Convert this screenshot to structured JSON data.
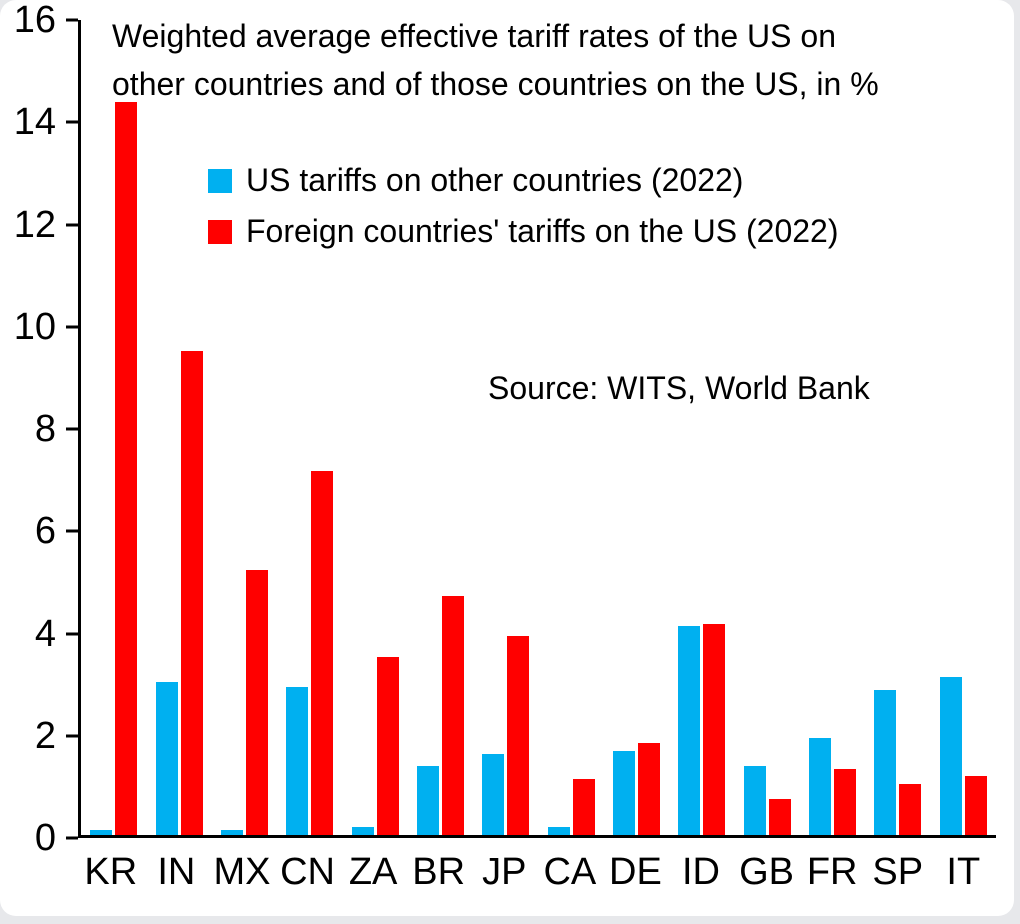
{
  "chart_data": {
    "type": "bar",
    "title": "Weighted average effective tariff rates of the US on other countries and of those countries on the US, in %",
    "title_lines": [
      "Weighted average effective tariff rates of the US on",
      "other countries and of those countries on the US, in %"
    ],
    "categories": [
      "KR",
      "IN",
      "MX",
      "CN",
      "ZA",
      "BR",
      "JP",
      "CA",
      "DE",
      "ID",
      "GB",
      "FR",
      "SP",
      "IT"
    ],
    "series": [
      {
        "name": "US tariffs on other countries (2022)",
        "color": "#00B0F0",
        "values": [
          0.1,
          3.0,
          0.1,
          2.9,
          0.15,
          1.35,
          1.6,
          0.15,
          1.65,
          4.1,
          1.35,
          1.9,
          2.85,
          3.1
        ]
      },
      {
        "name": "Foreign countries' tariffs on the US (2022)",
        "color": "#FF0000",
        "values": [
          14.4,
          9.5,
          5.2,
          7.15,
          3.5,
          4.7,
          3.9,
          1.1,
          1.8,
          4.15,
          0.7,
          1.3,
          1.0,
          1.15
        ]
      }
    ],
    "xlabel": "",
    "ylabel": "",
    "ylim": [
      0,
      16
    ],
    "yticks": [
      0,
      2,
      4,
      6,
      8,
      10,
      12,
      14,
      16
    ],
    "annotation": "Source: WITS, World Bank",
    "legend_position": "top-left-inside",
    "grid": false,
    "axis_color": "#000000",
    "background_color": "#ffffff"
  }
}
